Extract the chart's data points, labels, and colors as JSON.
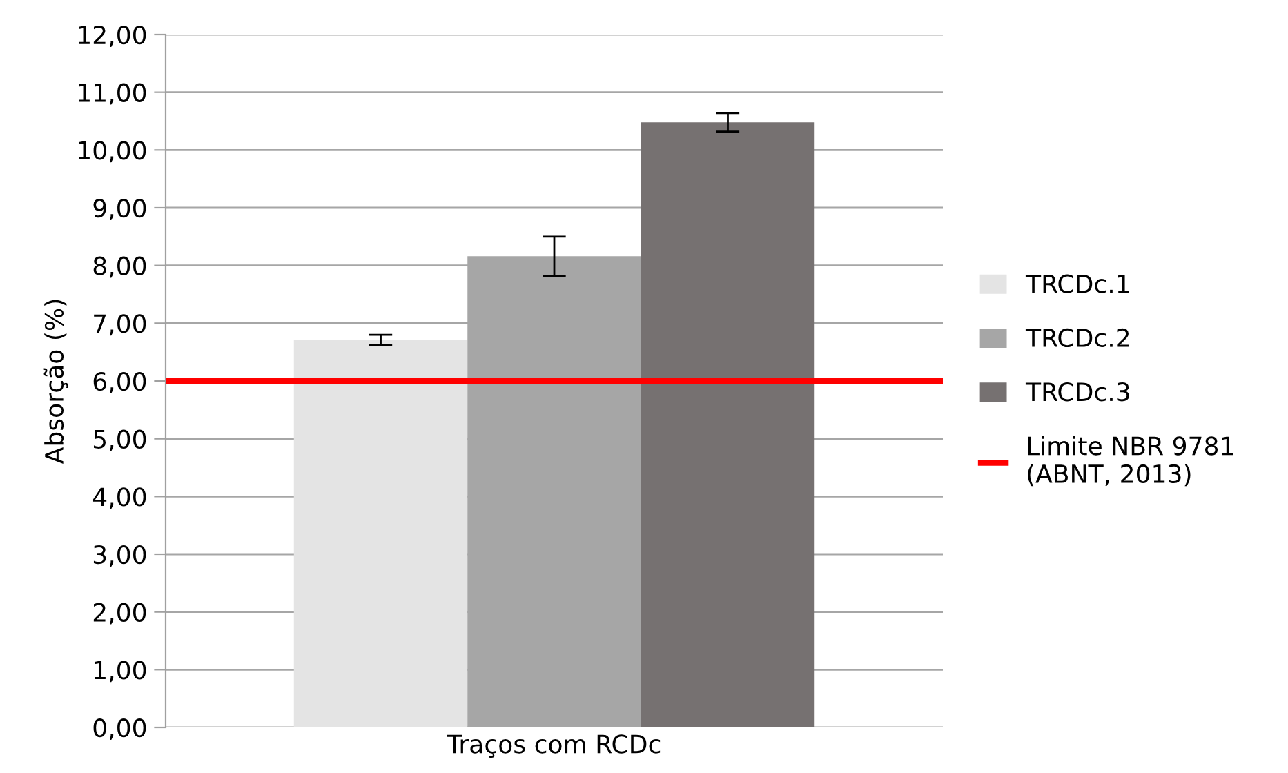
{
  "chart_data": {
    "type": "bar",
    "ylabel": "Absorção (%)",
    "categories": [
      "Traços com RCDc"
    ],
    "series": [
      {
        "name": "TRCDc.1",
        "color": "#e4e4e4",
        "values": [
          6.71
        ],
        "errors": [
          0.09
        ]
      },
      {
        "name": "TRCDc.2",
        "color": "#a6a6a6",
        "values": [
          8.16
        ],
        "errors": [
          0.34
        ]
      },
      {
        "name": "TRCDc.3",
        "color": "#767171",
        "values": [
          10.48
        ],
        "errors": [
          0.16
        ]
      }
    ],
    "ylim": [
      0,
      12
    ],
    "yticks": [
      {
        "value": 0,
        "label": "0,00"
      },
      {
        "value": 1,
        "label": "1,00"
      },
      {
        "value": 2,
        "label": "2,00"
      },
      {
        "value": 3,
        "label": "3,00"
      },
      {
        "value": 4,
        "label": "4,00"
      },
      {
        "value": 5,
        "label": "5,00"
      },
      {
        "value": 6,
        "label": "6,00"
      },
      {
        "value": 7,
        "label": "7,00"
      },
      {
        "value": 8,
        "label": "8,00"
      },
      {
        "value": 9,
        "label": "9,00"
      },
      {
        "value": 10,
        "label": "10,00"
      },
      {
        "value": 11,
        "label": "11,00"
      },
      {
        "value": 12,
        "label": "12,00"
      }
    ],
    "ref_lines": [
      {
        "axis": "y",
        "value": 6,
        "label": "Limite NBR 9781\n(ABNT, 2013)",
        "color": "#ff0000"
      }
    ],
    "grid": "y",
    "legend": "right"
  }
}
